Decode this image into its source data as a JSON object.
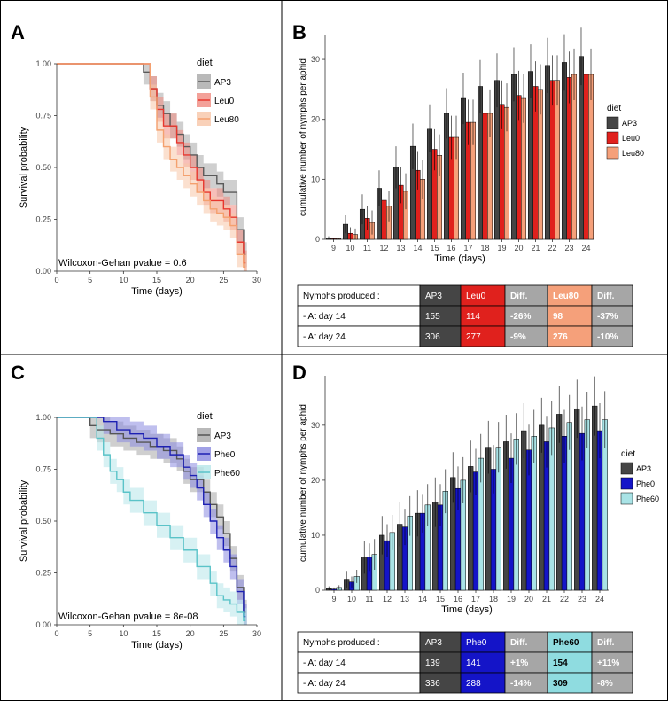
{
  "figure": {
    "panel_labels": [
      "A",
      "B",
      "C",
      "D"
    ]
  },
  "chart_data": [
    {
      "panel": "A",
      "type": "line",
      "subtype": "kaplan-meier",
      "xlabel": "Time (days)",
      "ylabel": "Survival probability",
      "xlim": [
        0,
        30
      ],
      "ylim": [
        0,
        1
      ],
      "xticks": [
        "0",
        "5",
        "10",
        "15",
        "20",
        "25",
        "30"
      ],
      "yticks": [
        "0.00",
        "0.25",
        "0.50",
        "0.75",
        "1.00"
      ],
      "legend_title": "diet",
      "annotation": "Wilcoxon-Gehan pvalue = 0.6",
      "series": [
        {
          "name": "AP3",
          "color": "#5a5a5a",
          "band": "#a8a8a8",
          "x": [
            0,
            13,
            14,
            15,
            16,
            17,
            18,
            19,
            20,
            21,
            22,
            24,
            25,
            27,
            28
          ],
          "y": [
            1.0,
            0.96,
            0.88,
            0.8,
            0.76,
            0.7,
            0.66,
            0.6,
            0.56,
            0.5,
            0.46,
            0.42,
            0.38,
            0.2,
            0.08
          ]
        },
        {
          "name": "Leu0",
          "color": "#e8372e",
          "band": "#f08a80",
          "x": [
            0,
            14,
            15,
            16,
            18,
            19,
            20,
            21,
            22,
            23,
            25,
            26,
            27,
            28
          ],
          "y": [
            1.0,
            0.88,
            0.78,
            0.7,
            0.62,
            0.56,
            0.5,
            0.44,
            0.38,
            0.34,
            0.3,
            0.26,
            0.14,
            0.04
          ]
        },
        {
          "name": "Leu80",
          "color": "#f4a06e",
          "band": "#f8c6a8",
          "x": [
            0,
            14,
            15,
            16,
            17,
            18,
            19,
            20,
            21,
            22,
            23,
            24,
            25,
            26,
            27,
            28
          ],
          "y": [
            1.0,
            0.84,
            0.68,
            0.6,
            0.54,
            0.5,
            0.46,
            0.42,
            0.38,
            0.34,
            0.3,
            0.28,
            0.26,
            0.22,
            0.08,
            0.02
          ]
        }
      ]
    },
    {
      "panel": "B",
      "type": "bar",
      "xlabel": "Time (days)",
      "ylabel": "cumulative number of nymphs per aphid",
      "ylim": [
        0,
        34
      ],
      "yticks": [
        "0",
        "10",
        "20",
        "30"
      ],
      "categories": [
        "9",
        "10",
        "11",
        "12",
        "13",
        "14",
        "15",
        "16",
        "17",
        "18",
        "19",
        "20",
        "21",
        "22",
        "23",
        "24"
      ],
      "legend_title": "diet",
      "series": [
        {
          "name": "AP3",
          "color": "#454545",
          "values": [
            0.2,
            2.5,
            5,
            8.5,
            12,
            15.5,
            18.5,
            21,
            23.5,
            25.5,
            26.5,
            27.5,
            28,
            29,
            29.5,
            30.5
          ]
        },
        {
          "name": "Leu0",
          "color": "#e0211d",
          "values": [
            0.1,
            1,
            3.5,
            6.5,
            9,
            11.5,
            15,
            17,
            19.5,
            21,
            22.5,
            24,
            25.5,
            26.5,
            27,
            27.5
          ]
        },
        {
          "name": "Leu80",
          "color": "#f5a07a",
          "values": [
            0.1,
            0.8,
            2.8,
            5.5,
            8,
            10,
            14,
            17,
            19.5,
            21,
            22,
            23.5,
            25,
            26.5,
            27.5,
            27.5
          ]
        }
      ],
      "errors": [
        [
          0.3,
          1.5,
          2.5,
          3,
          3.5,
          3.8,
          4,
          4.2,
          4.3,
          4.4,
          4.5,
          4.5,
          4.5,
          4.6,
          4.7,
          4.8
        ],
        [
          0.2,
          1,
          2,
          2.5,
          3,
          3.2,
          3.5,
          3.6,
          3.8,
          4,
          4,
          4.1,
          4.2,
          4.2,
          4.3,
          4.3
        ],
        [
          0.2,
          1,
          2,
          2.5,
          3,
          3.2,
          3.5,
          3.6,
          3.8,
          4,
          4,
          4.1,
          4.2,
          4.2,
          4.3,
          4.3
        ]
      ],
      "table": {
        "header": [
          "Nymphs produced :",
          "AP3",
          "Leu0",
          "Diff.",
          "Leu80",
          "Diff."
        ],
        "rows": [
          [
            "- At day 14",
            "155",
            "114",
            "-26%",
            "98",
            "-37%"
          ],
          [
            "- At day 24",
            "306",
            "277",
            "-9%",
            "276",
            "-10%"
          ]
        ],
        "column_colors": [
          "#ffffff",
          "#454545",
          "#e0211d",
          "#a6a6a6",
          "#f5a07a",
          "#a6a6a6"
        ]
      }
    },
    {
      "panel": "C",
      "type": "line",
      "subtype": "kaplan-meier",
      "xlabel": "Time (days)",
      "ylabel": "Survival probability",
      "xlim": [
        0,
        30
      ],
      "ylim": [
        0,
        1
      ],
      "xticks": [
        "0",
        "5",
        "10",
        "15",
        "20",
        "25",
        "30"
      ],
      "yticks": [
        "0.00",
        "0.25",
        "0.50",
        "0.75",
        "1.00"
      ],
      "legend_title": "diet",
      "annotation": "Wilcoxon-Gehan pvalue = 8e-08",
      "series": [
        {
          "name": "AP3",
          "color": "#555555",
          "band": "#a8a8a8",
          "x": [
            0,
            5,
            6,
            8,
            10,
            12,
            14,
            16,
            18,
            19,
            20,
            22,
            23,
            24,
            25,
            26,
            27,
            28
          ],
          "y": [
            1.0,
            0.96,
            0.94,
            0.92,
            0.9,
            0.88,
            0.86,
            0.84,
            0.8,
            0.74,
            0.7,
            0.64,
            0.58,
            0.52,
            0.44,
            0.32,
            0.18,
            0.06
          ]
        },
        {
          "name": "Phe0",
          "color": "#1d20b3",
          "band": "#8a8ae0",
          "x": [
            0,
            7,
            9,
            11,
            13,
            15,
            17,
            19,
            20,
            21,
            22,
            23,
            24,
            25,
            26,
            27,
            28
          ],
          "y": [
            1.0,
            0.98,
            0.94,
            0.92,
            0.9,
            0.86,
            0.82,
            0.76,
            0.72,
            0.66,
            0.58,
            0.5,
            0.42,
            0.36,
            0.28,
            0.16,
            0.04
          ]
        },
        {
          "name": "Phe60",
          "color": "#5ac3c8",
          "band": "#b6e6e9",
          "x": [
            0,
            6,
            7,
            8,
            9,
            10,
            11,
            13,
            15,
            17,
            19,
            21,
            23,
            24,
            25,
            26,
            27,
            28
          ],
          "y": [
            1.0,
            0.9,
            0.82,
            0.74,
            0.7,
            0.64,
            0.6,
            0.54,
            0.48,
            0.42,
            0.36,
            0.28,
            0.2,
            0.14,
            0.12,
            0.1,
            0.06,
            0.02
          ]
        }
      ]
    },
    {
      "panel": "D",
      "type": "bar",
      "xlabel": "Time (days)",
      "ylabel": "cumulative number of nymphs per aphid",
      "ylim": [
        0,
        39
      ],
      "yticks": [
        "0",
        "10",
        "20",
        "30"
      ],
      "categories": [
        "9",
        "10",
        "11",
        "12",
        "13",
        "14",
        "15",
        "16",
        "17",
        "18",
        "19",
        "20",
        "21",
        "22",
        "23",
        "24"
      ],
      "legend_title": "diet",
      "series": [
        {
          "name": "AP3",
          "color": "#454545",
          "values": [
            0.3,
            2,
            6,
            10,
            12,
            14,
            16,
            20.5,
            22.5,
            26,
            27,
            29,
            30,
            32,
            33,
            33.5
          ]
        },
        {
          "name": "Phe0",
          "color": "#1414c8",
          "values": [
            0.2,
            1.5,
            6,
            9,
            11.5,
            14,
            15.5,
            18.5,
            21.5,
            22,
            24,
            25.5,
            27,
            28,
            28.5,
            29
          ]
        },
        {
          "name": "Phe60",
          "color": "#a9e3e6",
          "values": [
            0.5,
            2.5,
            6.5,
            10.5,
            13.5,
            15.5,
            18,
            20,
            24,
            26,
            27.5,
            28,
            29.5,
            30.5,
            31,
            31
          ]
        }
      ],
      "errors": [
        [
          0.4,
          1.5,
          3,
          3.5,
          4,
          4.2,
          4.5,
          4.6,
          4.7,
          4.8,
          4.9,
          5,
          5,
          5.2,
          5.3,
          5.4
        ],
        [
          0.3,
          1,
          2.5,
          3,
          3.3,
          3.5,
          3.8,
          4,
          4.2,
          4.4,
          4.5,
          4.6,
          4.7,
          4.8,
          4.9,
          5
        ],
        [
          0.4,
          1.2,
          2.8,
          3.2,
          3.6,
          3.8,
          4,
          4.2,
          4.4,
          4.6,
          4.7,
          4.8,
          4.9,
          5,
          5.1,
          5.2
        ]
      ],
      "table": {
        "header": [
          "Nymphs produced :",
          "AP3",
          "Phe0",
          "Diff.",
          "Phe60",
          "Diff."
        ],
        "rows": [
          [
            "- At day 14",
            "139",
            "141",
            "+1%",
            "154",
            "+11%"
          ],
          [
            "- At day 24",
            "336",
            "288",
            "-14%",
            "309",
            "-8%"
          ]
        ],
        "column_colors": [
          "#ffffff",
          "#454545",
          "#1414c8",
          "#a6a6a6",
          "#8fdce0",
          "#a6a6a6"
        ]
      }
    }
  ]
}
